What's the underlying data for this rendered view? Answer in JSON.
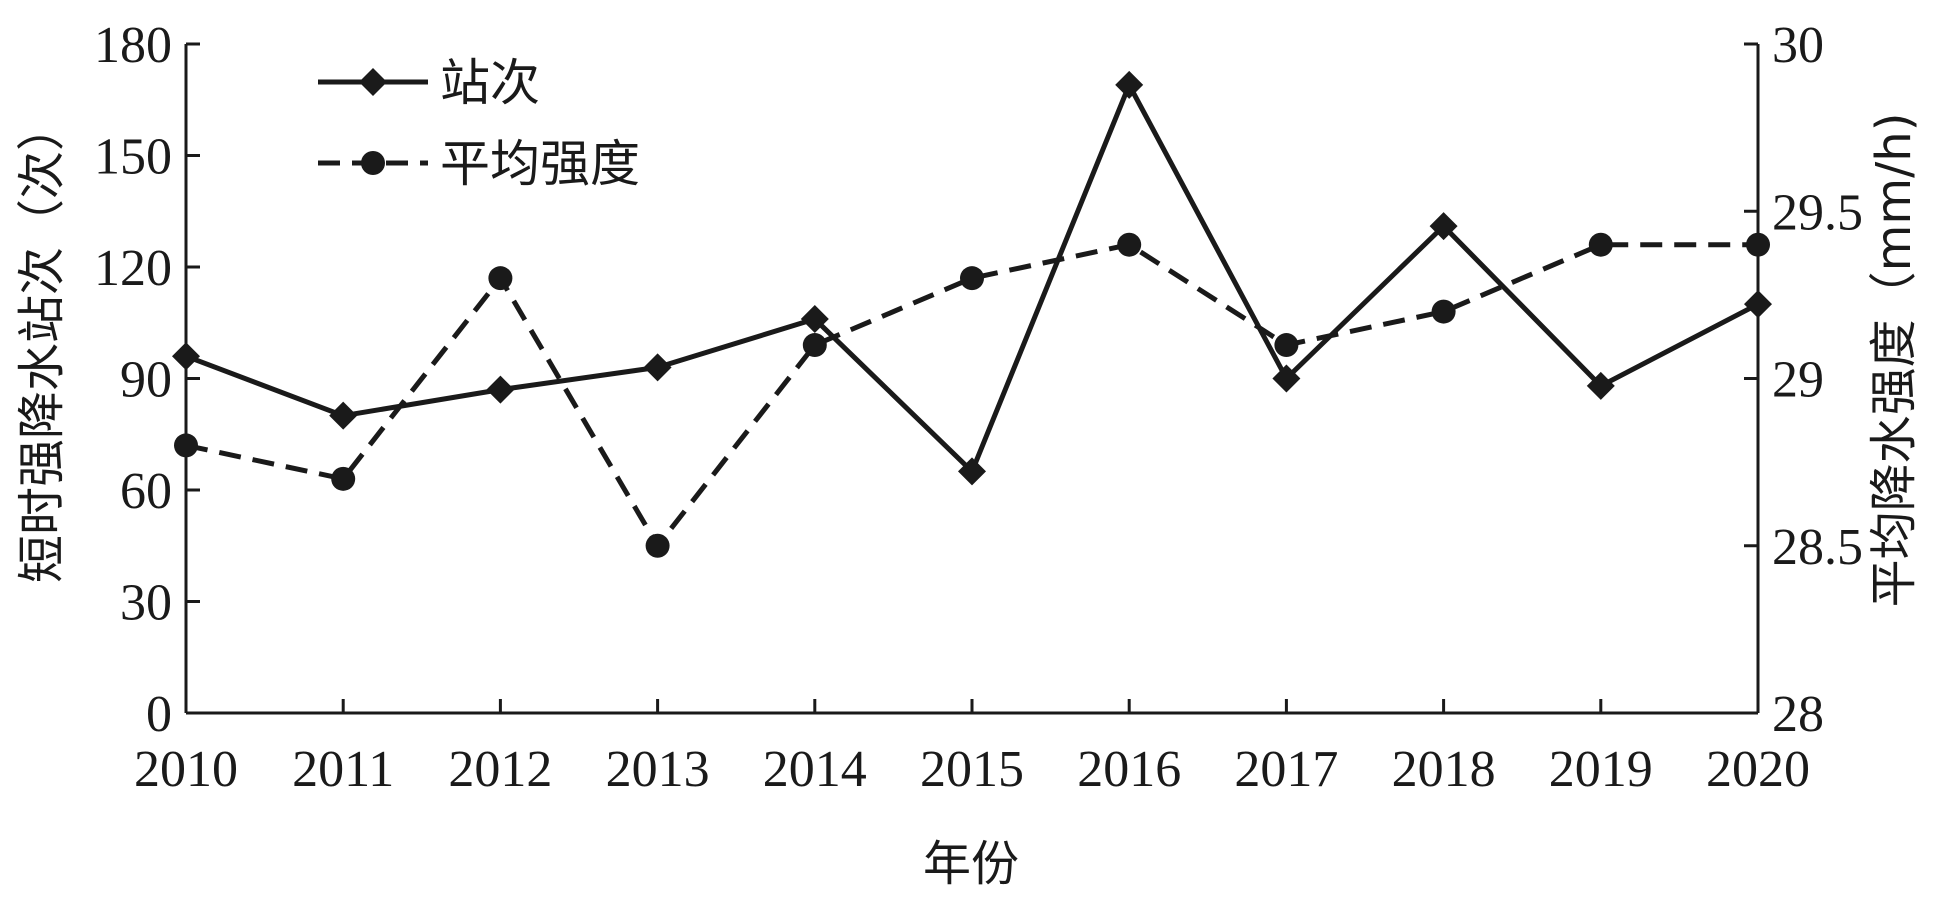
{
  "chart_data": {
    "type": "line",
    "x": [
      "2010",
      "2011",
      "2012",
      "2013",
      "2014",
      "2015",
      "2016",
      "2017",
      "2018",
      "2019",
      "2020"
    ],
    "xlabel": "年份",
    "ylabel_left": "短时强降水站次（次）",
    "ylabel_right": "平均降水强度（mm/h)",
    "ylim_left": [
      0,
      180
    ],
    "ylim_right": [
      28,
      30
    ],
    "yticks_left": [
      "0",
      "30",
      "60",
      "90",
      "120",
      "150",
      "180"
    ],
    "yticks_right": [
      "28",
      "28.5",
      "29",
      "29.5",
      "30"
    ],
    "grid": false,
    "legend_position": "top-left",
    "series": [
      {
        "name": "站次",
        "axis": "left",
        "style": "solid",
        "marker": "diamond",
        "values": [
          96,
          80,
          87,
          93,
          106,
          65,
          169,
          90,
          131,
          88,
          110
        ]
      },
      {
        "name": "平均强度",
        "axis": "right",
        "style": "dashed",
        "marker": "circle",
        "values": [
          28.8,
          28.7,
          29.3,
          28.5,
          29.1,
          29.3,
          29.4,
          29.1,
          29.2,
          29.4,
          29.4
        ]
      }
    ],
    "colors": {
      "line": "#1a1a1a",
      "background": "#ffffff"
    }
  }
}
